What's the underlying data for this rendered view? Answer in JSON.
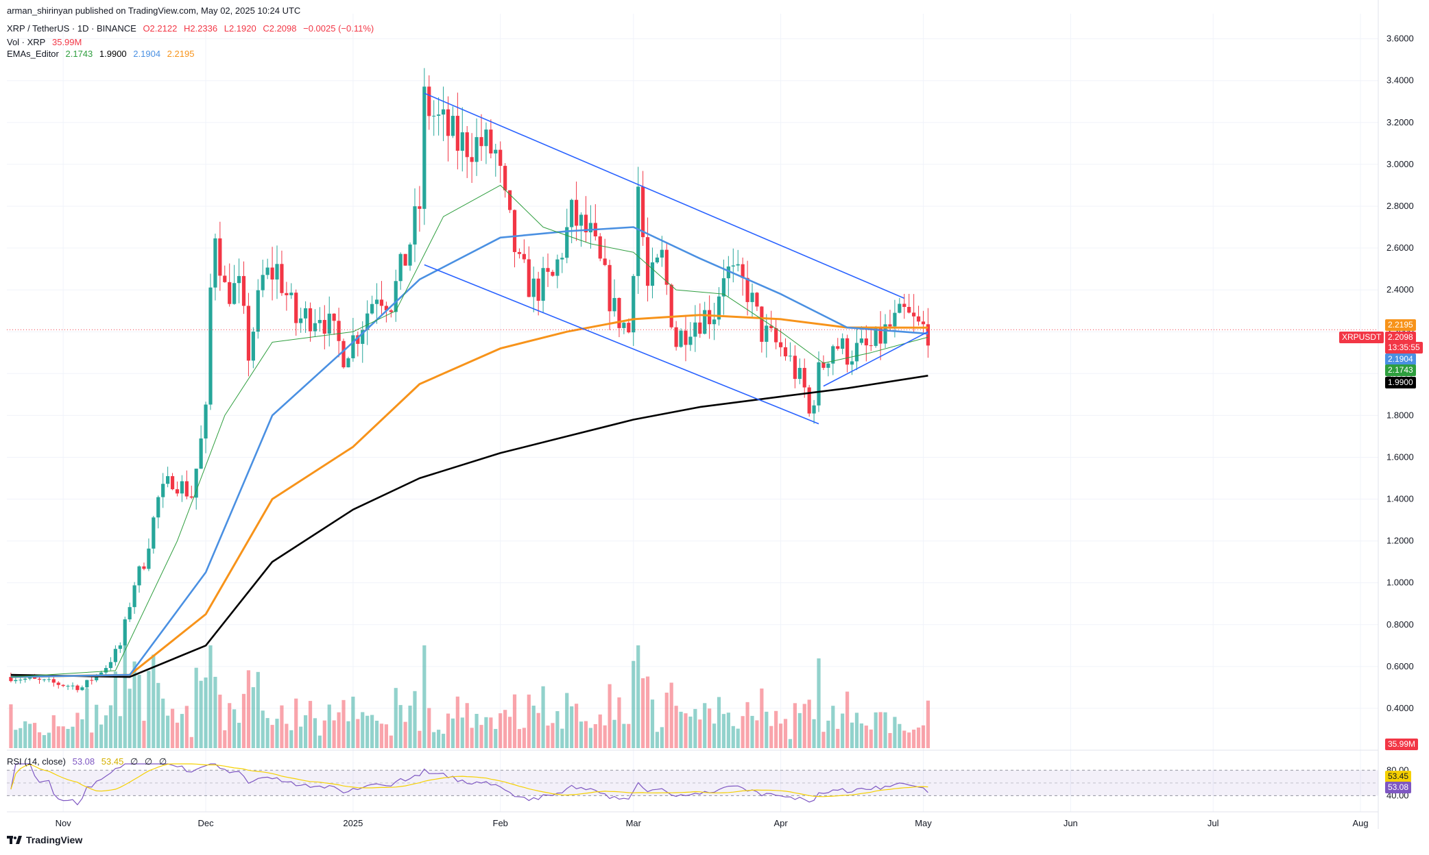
{
  "header": {
    "published": "arman_shirinyan published on TradingView.com, May 02, 2025 10:24 UTC",
    "symbol": "XRP / TetherUS · 1D · BINANCE",
    "ohlc": {
      "o": "O2.2122",
      "h": "H2.2336",
      "l": "L2.1920",
      "c": "C2.2098",
      "chg": "−0.0025 (−0.11%)"
    },
    "vol_label": "Vol · XRP",
    "vol_value": "35.99M",
    "ema_label": "EMAs_Editor",
    "ema_values": [
      "2.1743",
      "1.9900",
      "2.1904",
      "2.2195"
    ]
  },
  "rsi_header": {
    "label": "RSI (14, close)",
    "value": "53.08",
    "ma": "53.45",
    "extra": [
      "∅",
      "∅",
      "∅"
    ]
  },
  "price_tags": {
    "ema_orange": "2.2195",
    "symbol": "XRPUSDT",
    "last": "2.2098",
    "countdown": "13:35:55",
    "ema_blue": "2.1904",
    "ema_green": "2.1743",
    "ema_black": "1.9900",
    "volume": "35.99M",
    "rsi_ma": "53.45",
    "rsi": "53.08"
  },
  "colors": {
    "up": "#26a69a",
    "down": "#f23645",
    "ema_blue": "#4a90e2",
    "ema_orange": "#f7931a",
    "ema_green": "#2e9e3e",
    "ema_black": "#000000",
    "trend": "#2962ff",
    "rsi": "#7e57c2",
    "rsi_ma": "#f5d000"
  },
  "footer": {
    "brand": "TradingView"
  },
  "chart_data": {
    "type": "candlestick",
    "price_axis": {
      "ticks": [
        "3.6000",
        "3.4000",
        "3.2000",
        "3.0000",
        "2.8000",
        "2.6000",
        "2.4000",
        "2.2000",
        "2.0000",
        "1.8000",
        "1.6000",
        "1.4000",
        "1.2000",
        "1.0000",
        "0.8000",
        "0.6000",
        "0.4000"
      ],
      "range": [
        0.2,
        3.72
      ]
    },
    "time_axis": {
      "labels": [
        "Nov",
        "Dec",
        "2025",
        "Feb",
        "Mar",
        "Apr",
        "May",
        "Jun",
        "Jul",
        "Aug"
      ]
    },
    "rsi_axis": {
      "ticks": [
        "80.00",
        "40.00"
      ]
    },
    "trendlines": [
      {
        "name": "upper-channel",
        "from": [
          "2025-01-16",
          3.34
        ],
        "to": [
          "2025-04-27",
          2.36
        ]
      },
      {
        "name": "lower-channel",
        "from": [
          "2025-01-16",
          2.52
        ],
        "to": [
          "2025-04-09",
          1.76
        ]
      },
      {
        "name": "rising-support",
        "from": [
          "2025-04-10",
          1.94
        ],
        "to": [
          "2025-05-02",
          2.2
        ]
      }
    ],
    "candles_keyframes": [
      [
        "2024-10-21",
        0.55
      ],
      [
        "2024-11-05",
        0.5
      ],
      [
        "2024-11-10",
        0.6
      ],
      [
        "2024-11-13",
        0.7
      ],
      [
        "2024-11-16",
        1.0
      ],
      [
        "2024-11-18",
        1.1
      ],
      [
        "2024-11-21",
        1.4
      ],
      [
        "2024-11-24",
        1.5
      ],
      [
        "2024-11-28",
        1.42
      ],
      [
        "2024-12-01",
        1.8
      ],
      [
        "2024-12-02",
        2.4
      ],
      [
        "2024-12-03",
        2.7
      ],
      [
        "2024-12-05",
        2.4
      ],
      [
        "2024-12-08",
        2.4
      ],
      [
        "2024-12-10",
        2.1
      ],
      [
        "2024-12-13",
        2.45
      ],
      [
        "2024-12-16",
        2.5
      ],
      [
        "2024-12-20",
        2.25
      ],
      [
        "2024-12-25",
        2.3
      ],
      [
        "2024-12-30",
        2.1
      ],
      [
        "2025-01-02",
        2.2
      ],
      [
        "2025-01-06",
        2.4
      ],
      [
        "2025-01-09",
        2.35
      ],
      [
        "2025-01-12",
        2.55
      ],
      [
        "2025-01-15",
        2.8
      ],
      [
        "2025-01-16",
        3.3
      ],
      [
        "2025-01-19",
        3.2
      ],
      [
        "2025-01-23",
        3.1
      ],
      [
        "2025-01-28",
        3.1
      ],
      [
        "2025-01-31",
        3.05
      ],
      [
        "2025-02-02",
        2.8
      ],
      [
        "2025-02-05",
        2.5
      ],
      [
        "2025-02-08",
        2.4
      ],
      [
        "2025-02-12",
        2.45
      ],
      [
        "2025-02-16",
        2.75
      ],
      [
        "2025-02-20",
        2.65
      ],
      [
        "2025-02-25",
        2.3
      ],
      [
        "2025-02-28",
        2.2
      ],
      [
        "2025-03-02",
        2.9
      ],
      [
        "2025-03-04",
        2.4
      ],
      [
        "2025-03-07",
        2.55
      ],
      [
        "2025-03-10",
        2.15
      ],
      [
        "2025-03-13",
        2.25
      ],
      [
        "2025-03-18",
        2.3
      ],
      [
        "2025-03-20",
        2.5
      ],
      [
        "2025-03-25",
        2.4
      ],
      [
        "2025-03-28",
        2.2
      ],
      [
        "2025-04-02",
        2.1
      ],
      [
        "2025-04-06",
        1.92
      ],
      [
        "2025-04-07",
        1.8
      ],
      [
        "2025-04-09",
        2.0
      ],
      [
        "2025-04-12",
        2.15
      ],
      [
        "2025-04-15",
        2.1
      ],
      [
        "2025-04-20",
        2.12
      ],
      [
        "2025-04-23",
        2.2
      ],
      [
        "2025-04-27",
        2.28
      ],
      [
        "2025-04-30",
        2.22
      ],
      [
        "2025-05-02",
        2.21
      ]
    ],
    "ema_series": [
      {
        "name": "EMA 200",
        "color": "black",
        "points": [
          [
            "2024-10-21",
            0.56
          ],
          [
            "2024-11-15",
            0.55
          ],
          [
            "2024-12-01",
            0.7
          ],
          [
            "2024-12-15",
            1.1
          ],
          [
            "2025-01-01",
            1.35
          ],
          [
            "2025-01-15",
            1.5
          ],
          [
            "2025-02-01",
            1.62
          ],
          [
            "2025-02-15",
            1.7
          ],
          [
            "2025-03-01",
            1.78
          ],
          [
            "2025-03-15",
            1.84
          ],
          [
            "2025-04-01",
            1.89
          ],
          [
            "2025-04-15",
            1.93
          ],
          [
            "2025-05-02",
            1.99
          ]
        ]
      },
      {
        "name": "EMA 100",
        "color": "orange",
        "points": [
          [
            "2024-10-21",
            0.55
          ],
          [
            "2024-11-15",
            0.56
          ],
          [
            "2024-12-01",
            0.85
          ],
          [
            "2024-12-15",
            1.4
          ],
          [
            "2025-01-01",
            1.65
          ],
          [
            "2025-01-15",
            1.95
          ],
          [
            "2025-02-01",
            2.12
          ],
          [
            "2025-02-15",
            2.2
          ],
          [
            "2025-03-01",
            2.26
          ],
          [
            "2025-03-15",
            2.28
          ],
          [
            "2025-04-01",
            2.26
          ],
          [
            "2025-04-15",
            2.22
          ],
          [
            "2025-05-02",
            2.2195
          ]
        ]
      },
      {
        "name": "EMA 50",
        "color": "blue",
        "points": [
          [
            "2024-10-21",
            0.55
          ],
          [
            "2024-11-15",
            0.56
          ],
          [
            "2024-12-01",
            1.05
          ],
          [
            "2024-12-15",
            1.8
          ],
          [
            "2025-01-01",
            2.15
          ],
          [
            "2025-01-15",
            2.45
          ],
          [
            "2025-02-01",
            2.65
          ],
          [
            "2025-02-15",
            2.68
          ],
          [
            "2025-03-01",
            2.7
          ],
          [
            "2025-03-15",
            2.55
          ],
          [
            "2025-04-01",
            2.38
          ],
          [
            "2025-04-15",
            2.22
          ],
          [
            "2025-05-02",
            2.1904
          ]
        ]
      },
      {
        "name": "EMA 20",
        "color": "green",
        "points": [
          [
            "2024-10-21",
            0.55
          ],
          [
            "2024-11-12",
            0.58
          ],
          [
            "2024-11-25",
            1.2
          ],
          [
            "2024-12-05",
            1.8
          ],
          [
            "2024-12-15",
            2.15
          ],
          [
            "2025-01-01",
            2.2
          ],
          [
            "2025-01-10",
            2.3
          ],
          [
            "2025-01-20",
            2.75
          ],
          [
            "2025-02-01",
            2.9
          ],
          [
            "2025-02-10",
            2.7
          ],
          [
            "2025-02-20",
            2.62
          ],
          [
            "2025-03-01",
            2.58
          ],
          [
            "2025-03-10",
            2.4
          ],
          [
            "2025-03-20",
            2.38
          ],
          [
            "2025-04-01",
            2.2
          ],
          [
            "2025-04-10",
            2.05
          ],
          [
            "2025-04-20",
            2.1
          ],
          [
            "2025-05-02",
            2.1743
          ]
        ]
      }
    ]
  }
}
